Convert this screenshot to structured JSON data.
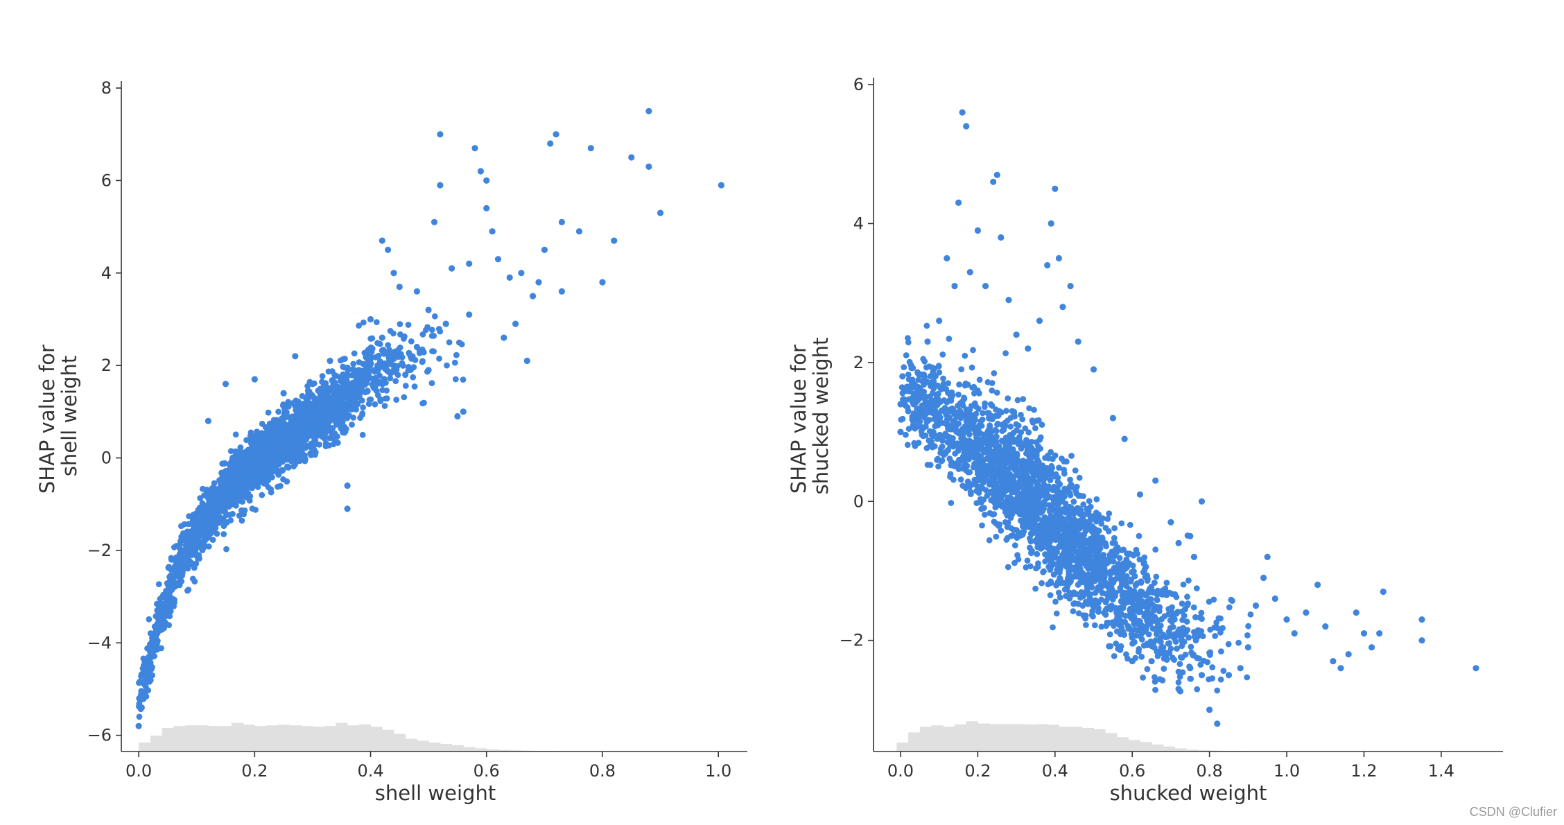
{
  "watermark": "CSDN @Clufier",
  "colors": {
    "points": "#3f85de",
    "histogram": "#e0e0e0",
    "axis": "#333333"
  },
  "chart_data": [
    {
      "type": "scatter",
      "xlabel": "shell weight",
      "ylabel_lines": [
        "SHAP value for",
        "shell weight"
      ],
      "xlim": [
        -0.03,
        1.05
      ],
      "ylim": [
        -6.35,
        8.15
      ],
      "xticks": [
        0.0,
        0.2,
        0.4,
        0.6,
        0.8,
        1.0
      ],
      "xtick_labels": [
        "0.0",
        "0.2",
        "0.4",
        "0.6",
        "0.8",
        "1.0"
      ],
      "yticks": [
        -6,
        -4,
        -2,
        0,
        2,
        4,
        6,
        8
      ],
      "ytick_labels": [
        "−6",
        "−4",
        "−2",
        "0",
        "2",
        "4",
        "6",
        "8"
      ],
      "trend": [
        [
          0.0,
          -5.2
        ],
        [
          0.02,
          -4.3
        ],
        [
          0.05,
          -3.0
        ],
        [
          0.08,
          -2.0
        ],
        [
          0.12,
          -1.3
        ],
        [
          0.16,
          -0.6
        ],
        [
          0.2,
          -0.1
        ],
        [
          0.25,
          0.3
        ],
        [
          0.3,
          0.8
        ],
        [
          0.35,
          1.2
        ],
        [
          0.4,
          1.8
        ],
        [
          0.45,
          2.1
        ],
        [
          0.5,
          2.3
        ],
        [
          0.6,
          2.9
        ],
        [
          0.7,
          3.6
        ],
        [
          0.8,
          4.3
        ],
        [
          0.9,
          5.0
        ],
        [
          1.0,
          5.6
        ]
      ],
      "points": [
        [
          0.0,
          -5.8
        ],
        [
          0.005,
          -5.4
        ],
        [
          0.01,
          -4.9
        ],
        [
          0.015,
          -4.6
        ],
        [
          0.02,
          -4.2
        ],
        [
          0.03,
          -3.8
        ],
        [
          0.04,
          -3.5
        ],
        [
          0.05,
          -3.1
        ],
        [
          0.06,
          -2.8
        ],
        [
          0.07,
          -2.4
        ],
        [
          0.08,
          -2.1
        ],
        [
          0.1,
          -1.8
        ],
        [
          0.12,
          -1.4
        ],
        [
          0.14,
          -1.1
        ],
        [
          0.16,
          -0.7
        ],
        [
          0.18,
          -0.4
        ],
        [
          0.2,
          -0.1
        ],
        [
          0.22,
          0.1
        ],
        [
          0.24,
          0.4
        ],
        [
          0.26,
          0.6
        ],
        [
          0.28,
          0.8
        ],
        [
          0.3,
          0.9
        ],
        [
          0.32,
          1.1
        ],
        [
          0.34,
          1.3
        ],
        [
          0.36,
          1.6
        ],
        [
          0.38,
          1.9
        ],
        [
          0.4,
          2.2
        ],
        [
          0.42,
          2.6
        ],
        [
          0.44,
          2.0
        ],
        [
          0.46,
          1.8
        ],
        [
          0.48,
          2.4
        ],
        [
          0.5,
          1.9
        ],
        [
          0.12,
          0.8
        ],
        [
          0.15,
          1.6
        ],
        [
          0.2,
          1.7
        ],
        [
          0.25,
          1.4
        ],
        [
          0.27,
          2.2
        ],
        [
          0.3,
          1.6
        ],
        [
          0.33,
          2.1
        ],
        [
          0.36,
          -0.6
        ],
        [
          0.36,
          -1.1
        ],
        [
          0.4,
          3.0
        ],
        [
          0.42,
          4.7
        ],
        [
          0.43,
          4.5
        ],
        [
          0.44,
          4.0
        ],
        [
          0.45,
          3.7
        ],
        [
          0.48,
          3.6
        ],
        [
          0.5,
          3.2
        ],
        [
          0.51,
          5.1
        ],
        [
          0.52,
          5.9
        ],
        [
          0.52,
          7.0
        ],
        [
          0.53,
          2.9
        ],
        [
          0.54,
          4.1
        ],
        [
          0.55,
          0.9
        ],
        [
          0.56,
          1.0
        ],
        [
          0.57,
          4.2
        ],
        [
          0.57,
          3.1
        ],
        [
          0.58,
          6.7
        ],
        [
          0.59,
          6.2
        ],
        [
          0.6,
          6.0
        ],
        [
          0.6,
          5.4
        ],
        [
          0.61,
          4.9
        ],
        [
          0.62,
          4.3
        ],
        [
          0.63,
          2.6
        ],
        [
          0.64,
          3.9
        ],
        [
          0.65,
          2.9
        ],
        [
          0.66,
          4.0
        ],
        [
          0.67,
          2.1
        ],
        [
          0.68,
          3.5
        ],
        [
          0.69,
          3.8
        ],
        [
          0.7,
          4.5
        ],
        [
          0.71,
          6.8
        ],
        [
          0.72,
          7.0
        ],
        [
          0.73,
          5.1
        ],
        [
          0.73,
          3.6
        ],
        [
          0.76,
          4.9
        ],
        [
          0.78,
          6.7
        ],
        [
          0.8,
          3.8
        ],
        [
          0.82,
          4.7
        ],
        [
          0.85,
          6.5
        ],
        [
          0.88,
          7.5
        ],
        [
          0.88,
          6.3
        ],
        [
          0.9,
          5.3
        ],
        [
          1.005,
          5.9
        ]
      ],
      "histogram": {
        "bin_width": 0.02,
        "min": 0.0,
        "heights": [
          0.28,
          0.5,
          0.74,
          0.8,
          0.82,
          0.82,
          0.8,
          0.8,
          0.9,
          0.84,
          0.8,
          0.82,
          0.84,
          0.82,
          0.8,
          0.78,
          0.8,
          0.9,
          0.82,
          0.85,
          0.78,
          0.68,
          0.55,
          0.4,
          0.34,
          0.28,
          0.24,
          0.2,
          0.14,
          0.1,
          0.07,
          0.05,
          0.04,
          0.03,
          0.02,
          0.02,
          0.01,
          0.01,
          0.01,
          0.01
        ]
      }
    },
    {
      "type": "scatter",
      "xlabel": "shucked weight",
      "ylabel_lines": [
        "SHAP value for",
        "shucked weight"
      ],
      "xlim": [
        -0.07,
        1.56
      ],
      "ylim": [
        -3.6,
        6.1
      ],
      "xticks": [
        0.0,
        0.2,
        0.4,
        0.6,
        0.8,
        1.0,
        1.2,
        1.4
      ],
      "xtick_labels": [
        "0.0",
        "0.2",
        "0.4",
        "0.6",
        "0.8",
        "1.0",
        "1.2",
        "1.4"
      ],
      "yticks": [
        -2,
        0,
        2,
        4,
        6
      ],
      "ytick_labels": [
        "−2",
        "0",
        "2",
        "4",
        "6"
      ],
      "trend": [
        [
          0.0,
          1.6
        ],
        [
          0.05,
          1.4
        ],
        [
          0.1,
          1.2
        ],
        [
          0.15,
          1.0
        ],
        [
          0.2,
          0.8
        ],
        [
          0.25,
          0.55
        ],
        [
          0.3,
          0.3
        ],
        [
          0.35,
          0.05
        ],
        [
          0.4,
          -0.3
        ],
        [
          0.45,
          -0.6
        ],
        [
          0.5,
          -0.9
        ],
        [
          0.55,
          -1.2
        ],
        [
          0.6,
          -1.45
        ],
        [
          0.65,
          -1.65
        ],
        [
          0.7,
          -1.85
        ],
        [
          0.75,
          -1.95
        ],
        [
          0.8,
          -2.0
        ],
        [
          0.85,
          -2.05
        ],
        [
          0.9,
          -1.9
        ],
        [
          1.0,
          -1.8
        ],
        [
          1.1,
          -1.85
        ],
        [
          1.2,
          -1.9
        ],
        [
          1.3,
          -2.0
        ],
        [
          1.4,
          -2.1
        ]
      ],
      "points": [
        [
          0.0,
          1.0
        ],
        [
          0.0,
          1.4
        ],
        [
          0.005,
          1.8
        ],
        [
          0.01,
          1.6
        ],
        [
          0.02,
          1.3
        ],
        [
          0.03,
          1.7
        ],
        [
          0.05,
          1.5
        ],
        [
          0.07,
          2.3
        ],
        [
          0.1,
          2.6
        ],
        [
          0.12,
          3.5
        ],
        [
          0.14,
          3.1
        ],
        [
          0.15,
          4.3
        ],
        [
          0.16,
          5.6
        ],
        [
          0.17,
          5.4
        ],
        [
          0.18,
          3.3
        ],
        [
          0.2,
          3.9
        ],
        [
          0.22,
          3.1
        ],
        [
          0.24,
          4.6
        ],
        [
          0.25,
          4.7
        ],
        [
          0.26,
          3.8
        ],
        [
          0.28,
          2.9
        ],
        [
          0.3,
          2.4
        ],
        [
          0.33,
          2.2
        ],
        [
          0.36,
          2.6
        ],
        [
          0.38,
          3.4
        ],
        [
          0.39,
          4.0
        ],
        [
          0.4,
          4.5
        ],
        [
          0.41,
          3.5
        ],
        [
          0.42,
          2.8
        ],
        [
          0.44,
          3.1
        ],
        [
          0.46,
          2.3
        ],
        [
          0.5,
          1.9
        ],
        [
          0.55,
          1.2
        ],
        [
          0.58,
          0.9
        ],
        [
          0.62,
          0.1
        ],
        [
          0.66,
          0.3
        ],
        [
          0.7,
          -0.3
        ],
        [
          0.72,
          -0.6
        ],
        [
          0.75,
          -0.5
        ],
        [
          0.76,
          -0.8
        ],
        [
          0.78,
          0.0
        ],
        [
          0.6,
          -2.3
        ],
        [
          0.65,
          -2.3
        ],
        [
          0.68,
          -2.1
        ],
        [
          0.72,
          -2.7
        ],
        [
          0.75,
          -2.4
        ],
        [
          0.78,
          -2.5
        ],
        [
          0.8,
          -3.0
        ],
        [
          0.82,
          -3.2
        ],
        [
          0.85,
          -2.5
        ],
        [
          0.88,
          -2.4
        ],
        [
          0.9,
          -2.1
        ],
        [
          0.92,
          -1.5
        ],
        [
          0.94,
          -1.1
        ],
        [
          0.95,
          -0.8
        ],
        [
          0.97,
          -1.4
        ],
        [
          1.0,
          -1.7
        ],
        [
          1.02,
          -1.9
        ],
        [
          1.05,
          -1.6
        ],
        [
          1.08,
          -1.2
        ],
        [
          1.1,
          -1.8
        ],
        [
          1.12,
          -2.3
        ],
        [
          1.14,
          -2.4
        ],
        [
          1.16,
          -2.2
        ],
        [
          1.18,
          -1.6
        ],
        [
          1.2,
          -1.9
        ],
        [
          1.22,
          -2.1
        ],
        [
          1.24,
          -1.9
        ],
        [
          1.25,
          -1.3
        ],
        [
          1.35,
          -1.7
        ],
        [
          1.35,
          -2.0
        ],
        [
          1.49,
          -2.4
        ]
      ],
      "histogram": {
        "bin_width": 0.03,
        "min": -0.01,
        "heights": [
          0.28,
          0.6,
          0.78,
          0.82,
          0.78,
          0.85,
          0.95,
          0.88,
          0.86,
          0.86,
          0.86,
          0.85,
          0.86,
          0.84,
          0.78,
          0.78,
          0.74,
          0.7,
          0.58,
          0.45,
          0.36,
          0.3,
          0.22,
          0.16,
          0.1,
          0.06,
          0.04,
          0.03,
          0.02,
          0.02,
          0.01,
          0.01,
          0.01
        ]
      }
    }
  ]
}
